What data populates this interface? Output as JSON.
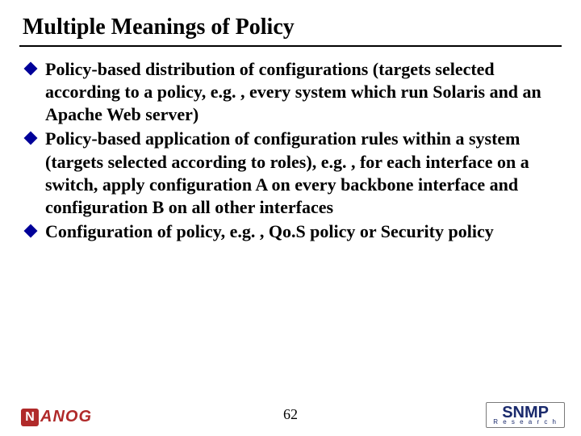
{
  "title": "Multiple Meanings of Policy",
  "title_color": "#000000",
  "title_fontsize": 28,
  "rule_color": "#000000",
  "bullet_marker_color": "#000099",
  "body_fontsize": 22,
  "body_color": "#000000",
  "bullets": [
    "Policy-based distribution of configurations (targets selected according to a policy, e.g. , every system which run Solaris and an Apache Web server)",
    "Policy-based application of configuration rules within a system (targets selected according to roles),  e.g. , for each interface on a switch, apply configuration A on every backbone interface and configuration B on all other interfaces",
    "Configuration of policy, e.g. , Qo.S policy or Security policy"
  ],
  "page_number": "62",
  "logo_left": {
    "badge_text": "N",
    "text": "ANOG",
    "color": "#b02a2a"
  },
  "logo_right": {
    "line1": "SNMP",
    "line2": "R e s e a r c h",
    "color": "#1a2a6c"
  },
  "background_color": "#ffffff"
}
